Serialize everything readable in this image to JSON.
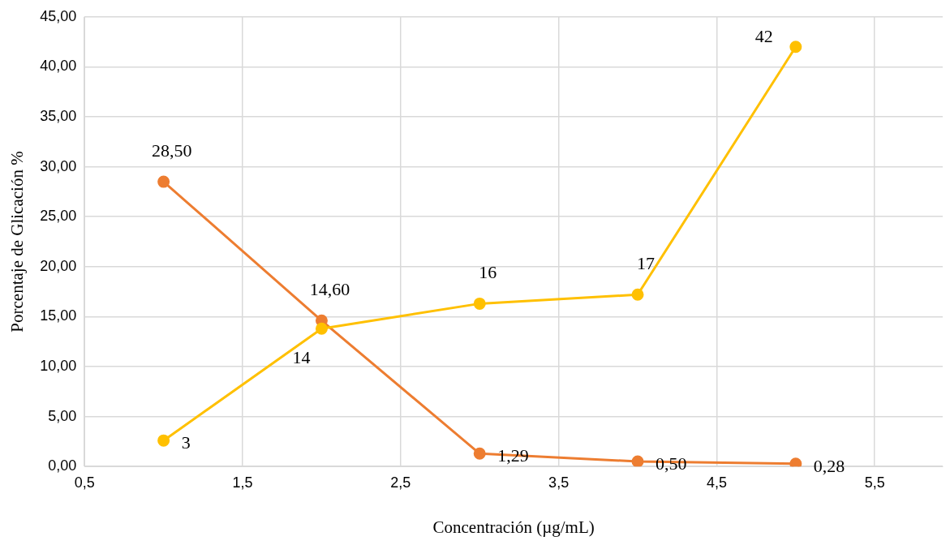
{
  "chart_data": {
    "type": "line",
    "xlabel": "Concentración (µg/mL)",
    "ylabel": "Porcentaje de Glicación %",
    "xlim": [
      0.5,
      5.93
    ],
    "xticks": [
      {
        "value": 0.5,
        "label": "0,5"
      },
      {
        "value": 1.5,
        "label": "1,5"
      },
      {
        "value": 2.5,
        "label": "2,5"
      },
      {
        "value": 3.5,
        "label": "3,5"
      },
      {
        "value": 4.5,
        "label": "4,5"
      },
      {
        "value": 5.5,
        "label": "5,5"
      }
    ],
    "ylim": [
      0,
      45
    ],
    "yticks": [
      {
        "value": 0,
        "label": "0,00"
      },
      {
        "value": 5,
        "label": "5,00"
      },
      {
        "value": 10,
        "label": "10,00"
      },
      {
        "value": 15,
        "label": "15,00"
      },
      {
        "value": 20,
        "label": "20,00"
      },
      {
        "value": 25,
        "label": "25,00"
      },
      {
        "value": 30,
        "label": "30,00"
      },
      {
        "value": 35,
        "label": "35,00"
      },
      {
        "value": 40,
        "label": "40,00"
      },
      {
        "value": 45,
        "label": "45,00"
      }
    ],
    "grid": true,
    "legend": false,
    "marker": "circle",
    "line_style": "solid",
    "series": [
      {
        "color": "#ffc000",
        "x": [
          1,
          2,
          3,
          4,
          5
        ],
        "values": [
          2.6,
          13.8,
          16.3,
          17.2,
          42.0
        ],
        "value_labels": [
          "3",
          "14",
          "16",
          "17",
          "42"
        ]
      },
      {
        "color": "#ed7d31",
        "x": [
          1,
          2,
          3,
          4,
          5
        ],
        "values": [
          28.5,
          14.6,
          1.29,
          0.5,
          0.28
        ],
        "value_labels": [
          "28,50",
          "14,60",
          "1,29",
          "0,50",
          "0,28"
        ]
      }
    ]
  }
}
